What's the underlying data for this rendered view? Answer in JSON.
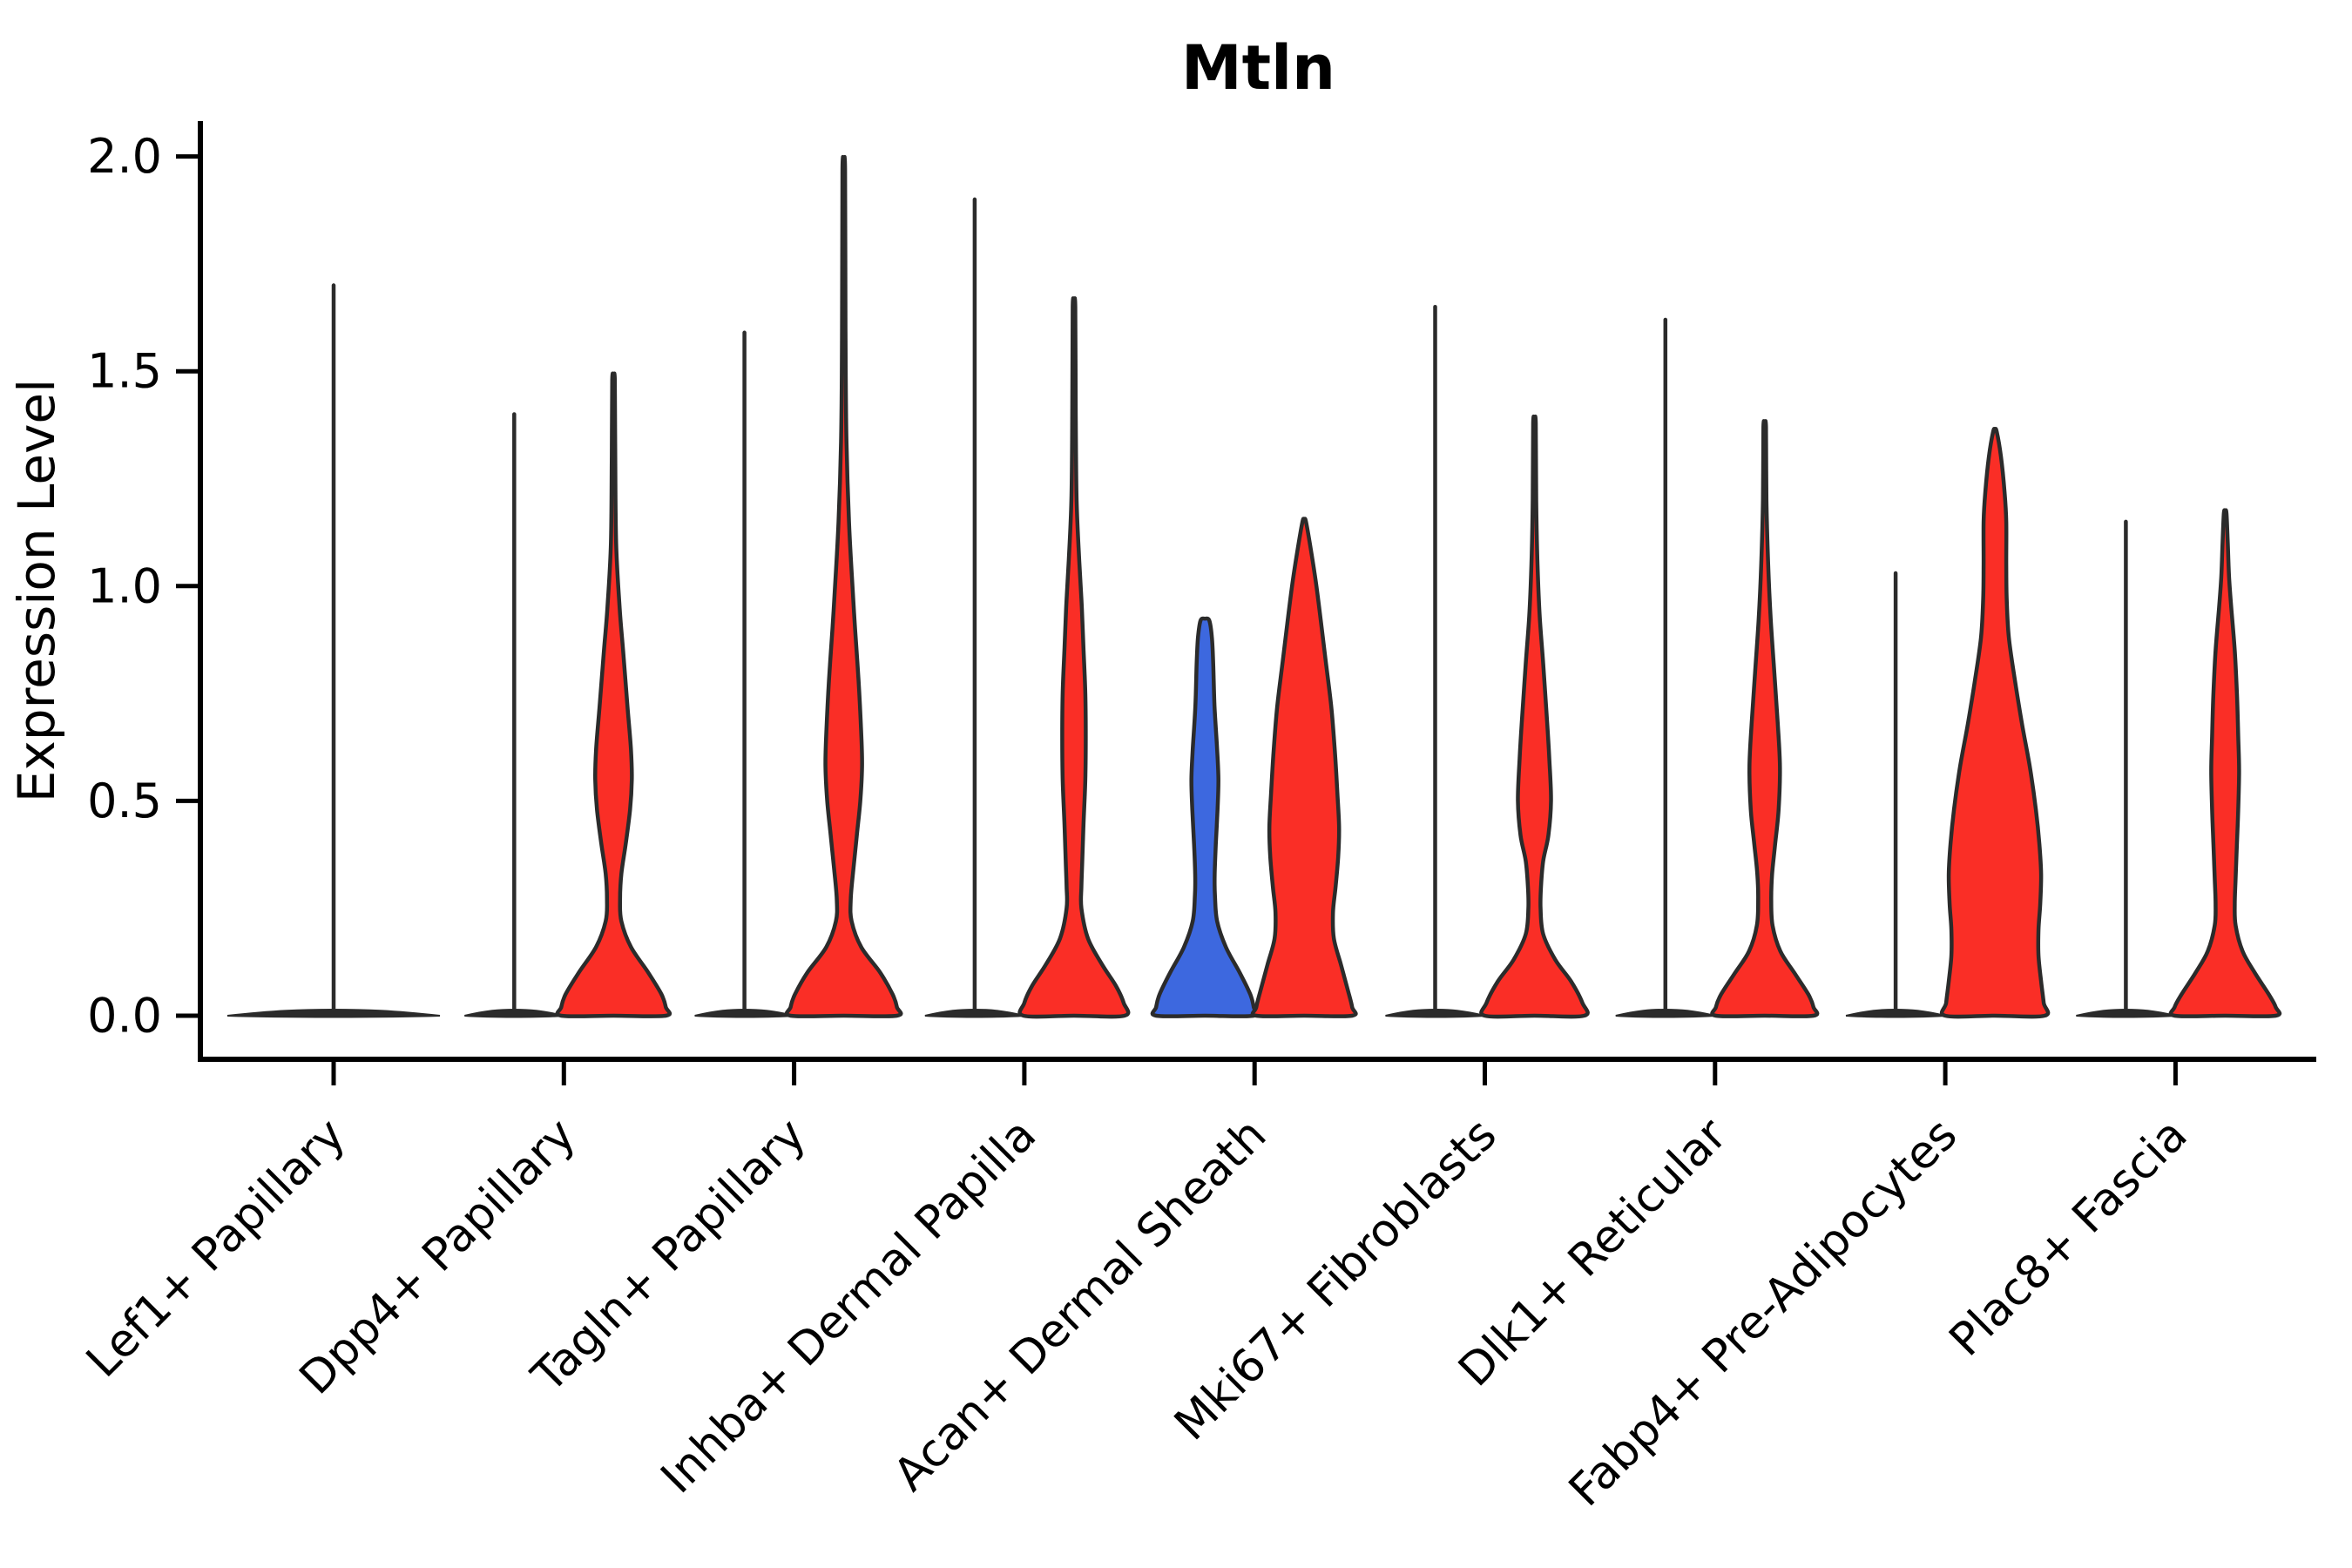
{
  "chart_data": {
    "type": "violin",
    "title": "Mtln",
    "xlabel": "",
    "ylabel": "Expression Level",
    "ylim": [
      0,
      2.08
    ],
    "yticks": [
      {
        "value": 0.0,
        "label": "0.0"
      },
      {
        "value": 0.5,
        "label": "0.5"
      },
      {
        "value": 1.0,
        "label": "1.0"
      },
      {
        "value": 1.5,
        "label": "1.5"
      },
      {
        "value": 2.0,
        "label": "2.0"
      }
    ],
    "x_tick_rotation": 45,
    "grid": false,
    "legend": "none",
    "categories": [
      "Lef1+ Papillary",
      "Dpp4+ Papillary",
      "Tagln+ Papillary",
      "Inhba+ Dermal Papilla",
      "Acan+ Dermal Sheath",
      "Mki67+ Fibroblasts",
      "Dlk1+ Reticular",
      "Fabp4+ Pre-Adipocytes",
      "Plac8+ Fascia"
    ],
    "colors": {
      "red_fill": "#FA2E26",
      "blue_fill": "#3D68DF",
      "outline": "#2B2B2B",
      "axis": "#000000"
    },
    "violins": [
      {
        "category": 0,
        "side": "center",
        "kind": "spike",
        "max": 1.7,
        "base_halfwidth": 122,
        "fill": "none"
      },
      {
        "category": 1,
        "side": "left",
        "kind": "spike",
        "max": 1.4,
        "base_halfwidth": 57,
        "fill": "none"
      },
      {
        "category": 1,
        "side": "right",
        "kind": "violin",
        "max": 1.48,
        "fill": "red",
        "profile": [
          [
            1.48,
            1.5
          ],
          [
            1.3,
            2
          ],
          [
            1.1,
            3
          ],
          [
            0.95,
            7
          ],
          [
            0.85,
            11
          ],
          [
            0.72,
            16
          ],
          [
            0.62,
            20
          ],
          [
            0.55,
            21
          ],
          [
            0.48,
            19
          ],
          [
            0.4,
            14
          ],
          [
            0.33,
            9
          ],
          [
            0.27,
            7.5
          ],
          [
            0.22,
            9
          ],
          [
            0.16,
            20
          ],
          [
            0.1,
            40
          ],
          [
            0.05,
            55
          ],
          [
            0.02,
            60
          ],
          [
            0,
            60
          ]
        ]
      },
      {
        "category": 2,
        "side": "left",
        "kind": "spike",
        "max": 1.59,
        "base_halfwidth": 57,
        "fill": "none"
      },
      {
        "category": 2,
        "side": "right",
        "kind": "violin",
        "max": 1.97,
        "fill": "red",
        "profile": [
          [
            1.97,
            1.5
          ],
          [
            1.6,
            2
          ],
          [
            1.35,
            3
          ],
          [
            1.15,
            6
          ],
          [
            1.0,
            10
          ],
          [
            0.9,
            13
          ],
          [
            0.78,
            17
          ],
          [
            0.66,
            20
          ],
          [
            0.58,
            21
          ],
          [
            0.5,
            19
          ],
          [
            0.42,
            15
          ],
          [
            0.34,
            11
          ],
          [
            0.27,
            8
          ],
          [
            0.22,
            9
          ],
          [
            0.16,
            20
          ],
          [
            0.1,
            42
          ],
          [
            0.05,
            56
          ],
          [
            0.02,
            61
          ],
          [
            0,
            61
          ]
        ]
      },
      {
        "category": 3,
        "side": "left",
        "kind": "spike",
        "max": 1.9,
        "base_halfwidth": 57,
        "fill": "none"
      },
      {
        "category": 3,
        "side": "right",
        "kind": "violin",
        "max": 1.65,
        "fill": "red",
        "profile": [
          [
            1.65,
            1.5
          ],
          [
            1.4,
            2
          ],
          [
            1.2,
            3
          ],
          [
            1.06,
            6
          ],
          [
            0.95,
            9
          ],
          [
            0.85,
            11
          ],
          [
            0.75,
            13
          ],
          [
            0.65,
            13.5
          ],
          [
            0.55,
            13
          ],
          [
            0.45,
            11
          ],
          [
            0.36,
            9.5
          ],
          [
            0.3,
            8.5
          ],
          [
            0.25,
            8.5
          ],
          [
            0.18,
            16
          ],
          [
            0.12,
            32
          ],
          [
            0.07,
            48
          ],
          [
            0.03,
            57
          ],
          [
            0,
            58
          ]
        ]
      },
      {
        "category": 4,
        "side": "left",
        "kind": "violin",
        "max": 0.92,
        "fill": "blue",
        "profile": [
          [
            0.92,
            5
          ],
          [
            0.88,
            8
          ],
          [
            0.82,
            9.5
          ],
          [
            0.72,
            11
          ],
          [
            0.62,
            14
          ],
          [
            0.55,
            15.5
          ],
          [
            0.48,
            14.5
          ],
          [
            0.4,
            12.5
          ],
          [
            0.33,
            11.2
          ],
          [
            0.28,
            11.5
          ],
          [
            0.22,
            14
          ],
          [
            0.16,
            24
          ],
          [
            0.1,
            40
          ],
          [
            0.05,
            52
          ],
          [
            0.02,
            56
          ],
          [
            0,
            56
          ]
        ]
      },
      {
        "category": 4,
        "side": "right",
        "kind": "violin",
        "max": 1.15,
        "fill": "red",
        "profile": [
          [
            1.15,
            2
          ],
          [
            1.08,
            8
          ],
          [
            1.0,
            14
          ],
          [
            0.92,
            19
          ],
          [
            0.82,
            25
          ],
          [
            0.72,
            31
          ],
          [
            0.62,
            35
          ],
          [
            0.52,
            38
          ],
          [
            0.44,
            40
          ],
          [
            0.37,
            39
          ],
          [
            0.3,
            36
          ],
          [
            0.24,
            33
          ],
          [
            0.18,
            34
          ],
          [
            0.12,
            42
          ],
          [
            0.06,
            50
          ],
          [
            0.02,
            55
          ],
          [
            0,
            55
          ]
        ]
      },
      {
        "category": 5,
        "side": "left",
        "kind": "spike",
        "max": 1.65,
        "base_halfwidth": 57,
        "fill": "none"
      },
      {
        "category": 5,
        "side": "right",
        "kind": "violin",
        "max": 1.38,
        "fill": "red",
        "profile": [
          [
            1.38,
            1.5
          ],
          [
            1.2,
            2
          ],
          [
            1.05,
            3.5
          ],
          [
            0.93,
            6
          ],
          [
            0.82,
            10
          ],
          [
            0.7,
            14
          ],
          [
            0.6,
            17
          ],
          [
            0.5,
            19
          ],
          [
            0.42,
            16
          ],
          [
            0.36,
            10
          ],
          [
            0.3,
            7.5
          ],
          [
            0.25,
            7
          ],
          [
            0.19,
            10
          ],
          [
            0.13,
            24
          ],
          [
            0.08,
            42
          ],
          [
            0.03,
            55
          ],
          [
            0,
            57
          ]
        ]
      },
      {
        "category": 6,
        "side": "left",
        "kind": "spike",
        "max": 1.62,
        "base_halfwidth": 57,
        "fill": "none"
      },
      {
        "category": 6,
        "side": "right",
        "kind": "violin",
        "max": 1.37,
        "fill": "red",
        "profile": [
          [
            1.37,
            1.5
          ],
          [
            1.2,
            2
          ],
          [
            1.05,
            4
          ],
          [
            0.92,
            7
          ],
          [
            0.8,
            11
          ],
          [
            0.68,
            15
          ],
          [
            0.58,
            17.5
          ],
          [
            0.48,
            16
          ],
          [
            0.4,
            12
          ],
          [
            0.33,
            8.5
          ],
          [
            0.27,
            7.5
          ],
          [
            0.21,
            9
          ],
          [
            0.15,
            18
          ],
          [
            0.1,
            34
          ],
          [
            0.05,
            50
          ],
          [
            0.02,
            56
          ],
          [
            0,
            56
          ]
        ]
      },
      {
        "category": 7,
        "side": "left",
        "kind": "spike",
        "max": 1.03,
        "base_halfwidth": 57,
        "fill": "none"
      },
      {
        "category": 7,
        "side": "right",
        "kind": "violin",
        "max": 1.36,
        "fill": "red",
        "profile": [
          [
            1.36,
            2
          ],
          [
            1.3,
            7
          ],
          [
            1.22,
            11
          ],
          [
            1.15,
            13
          ],
          [
            1.05,
            13
          ],
          [
            0.97,
            13.5
          ],
          [
            0.88,
            16
          ],
          [
            0.78,
            23
          ],
          [
            0.68,
            31
          ],
          [
            0.58,
            40
          ],
          [
            0.48,
            47
          ],
          [
            0.4,
            51
          ],
          [
            0.33,
            53
          ],
          [
            0.26,
            52
          ],
          [
            0.2,
            50
          ],
          [
            0.14,
            50
          ],
          [
            0.08,
            53
          ],
          [
            0.03,
            56
          ],
          [
            0,
            57
          ]
        ]
      },
      {
        "category": 8,
        "side": "left",
        "kind": "spike",
        "max": 1.15,
        "base_halfwidth": 57,
        "fill": "none"
      },
      {
        "category": 8,
        "side": "right",
        "kind": "violin",
        "max": 1.17,
        "fill": "red",
        "profile": [
          [
            1.17,
            1.5
          ],
          [
            1.1,
            3
          ],
          [
            1.02,
            4.5
          ],
          [
            0.95,
            7
          ],
          [
            0.85,
            11
          ],
          [
            0.75,
            13.5
          ],
          [
            0.65,
            15
          ],
          [
            0.57,
            16
          ],
          [
            0.48,
            15
          ],
          [
            0.4,
            13.5
          ],
          [
            0.32,
            12
          ],
          [
            0.26,
            11
          ],
          [
            0.21,
            12
          ],
          [
            0.15,
            20
          ],
          [
            0.1,
            34
          ],
          [
            0.05,
            50
          ],
          [
            0.02,
            58
          ],
          [
            0,
            58
          ]
        ]
      }
    ]
  }
}
